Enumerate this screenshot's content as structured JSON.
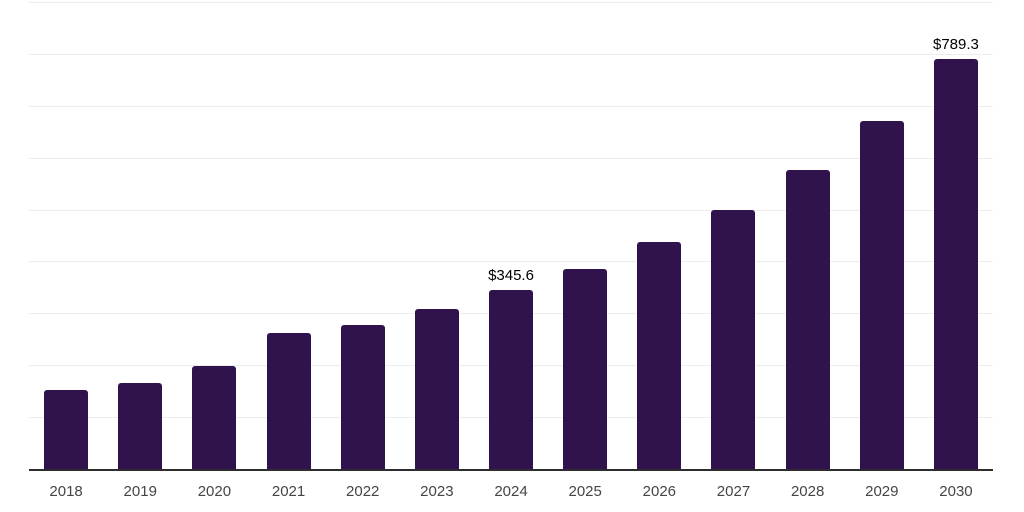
{
  "chart_data": {
    "type": "bar",
    "title": "",
    "xlabel": "",
    "ylabel": "",
    "categories": [
      "2018",
      "2019",
      "2020",
      "2021",
      "2022",
      "2023",
      "2024",
      "2025",
      "2026",
      "2027",
      "2028",
      "2029",
      "2030"
    ],
    "values": [
      152,
      166,
      198,
      262,
      278,
      308,
      345.6,
      386,
      438,
      500,
      576,
      670,
      789.3
    ],
    "data_labels": [
      "",
      "",
      "",
      "",
      "",
      "",
      "$345.6",
      "",
      "",
      "",
      "",
      "",
      "$789.3"
    ],
    "ylim": [
      0,
      900
    ],
    "gridline_step": 100,
    "grid": "horizontal",
    "legend": "none",
    "currency_prefix": "$"
  },
  "colors": {
    "bar": "#30134d",
    "gridline": "#ededed",
    "axis_line": "#2d2d2d",
    "tick_label": "#454545",
    "data_label": "#000000",
    "background": "#ffffff"
  }
}
